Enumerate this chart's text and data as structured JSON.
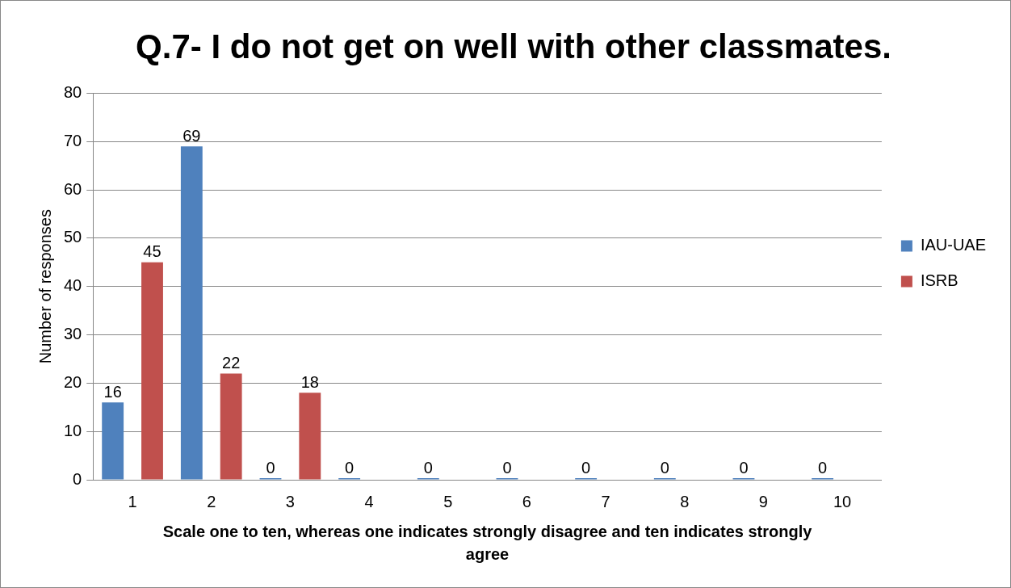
{
  "chart_data": {
    "type": "bar",
    "title": "Q.7- I do not get on well with other classmates.",
    "xlabel": "Scale one to ten, whereas one indicates strongly disagree and ten indicates strongly agree",
    "ylabel": "Number of responses",
    "categories": [
      "1",
      "2",
      "3",
      "4",
      "5",
      "6",
      "7",
      "8",
      "9",
      "10"
    ],
    "series": [
      {
        "name": "IAU-UAE",
        "color": "#4f81bd",
        "values": [
          16,
          69,
          0,
          0,
          0,
          0,
          0,
          0,
          0,
          0
        ]
      },
      {
        "name": "ISRB",
        "color": "#c0504d",
        "values": [
          45,
          22,
          18,
          null,
          null,
          null,
          null,
          null,
          null,
          null
        ]
      }
    ],
    "ylim": [
      0,
      80
    ],
    "yticks": [
      0,
      10,
      20,
      30,
      40,
      50,
      60,
      70,
      80
    ],
    "grid": "y",
    "legend": "right",
    "data_labels": true
  }
}
